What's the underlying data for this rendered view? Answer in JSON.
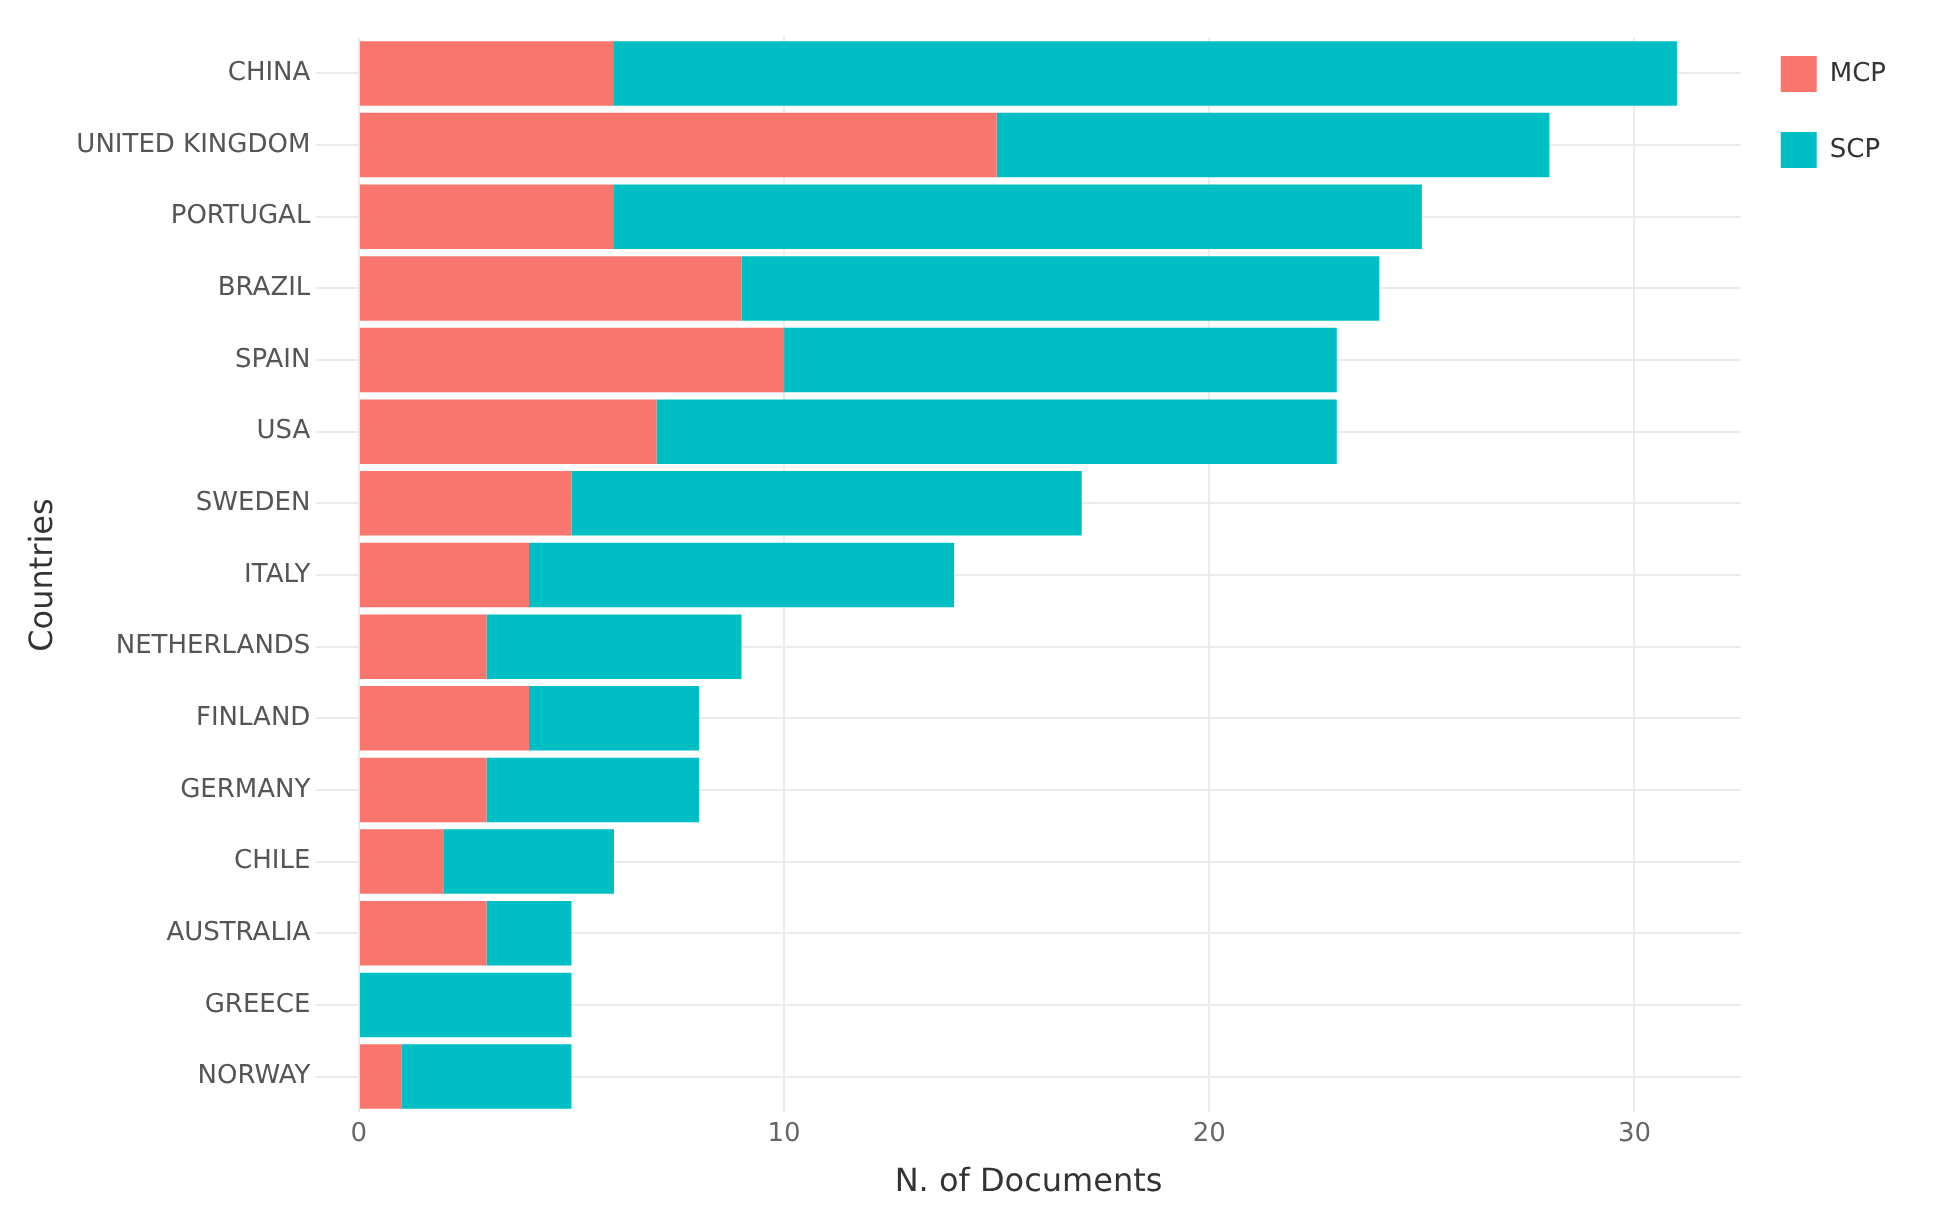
{
  "chart_data": {
    "type": "bar",
    "orientation": "horizontal",
    "stacked": true,
    "xlabel": "N. of Documents",
    "ylabel": "Countries",
    "categories": [
      "CHINA",
      "UNITED KINGDOM",
      "PORTUGAL",
      "BRAZIL",
      "SPAIN",
      "USA",
      "SWEDEN",
      "ITALY",
      "NETHERLANDS",
      "FINLAND",
      "GERMANY",
      "CHILE",
      "AUSTRALIA",
      "GREECE",
      "NORWAY"
    ],
    "series": [
      {
        "name": "MCP",
        "color": "#f8766d",
        "values": [
          6,
          15,
          6,
          9,
          10,
          7,
          5,
          4,
          3,
          4,
          3,
          2,
          3,
          0,
          1
        ]
      },
      {
        "name": "SCP",
        "color": "#00bfc4",
        "values": [
          25,
          13,
          19,
          15,
          13,
          16,
          12,
          10,
          6,
          4,
          5,
          4,
          2,
          5,
          4
        ]
      }
    ],
    "xlim": [
      -1,
      32.5
    ],
    "xticks": [
      0,
      10,
      20,
      30
    ],
    "grid": true,
    "legend": "top right"
  }
}
